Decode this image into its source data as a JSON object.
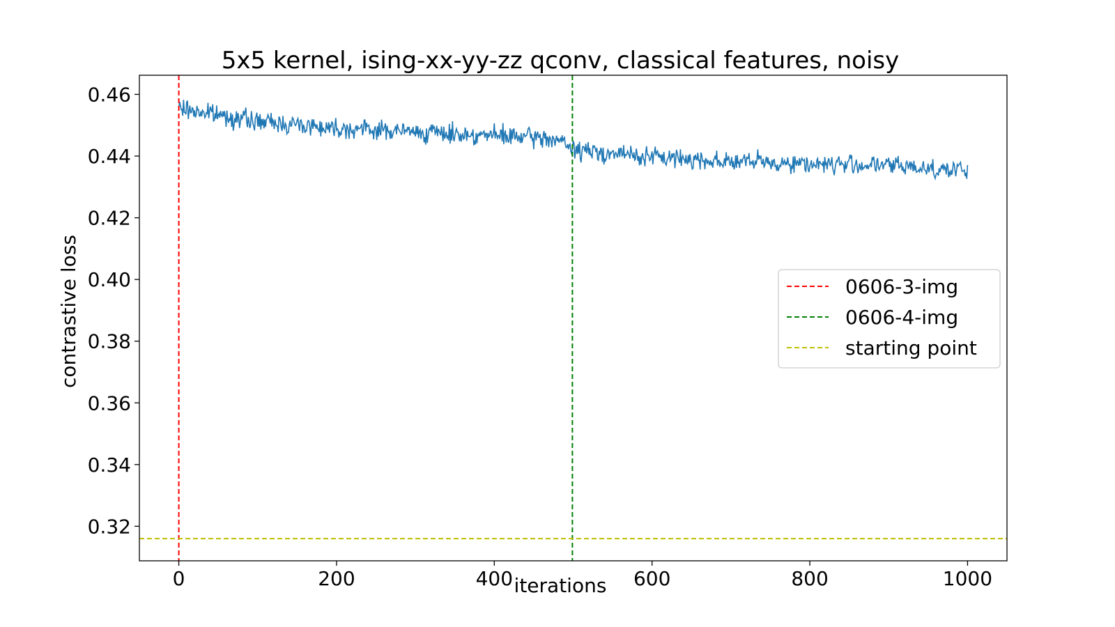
{
  "chart_data": {
    "type": "line",
    "title": "5x5 kernel, ising-xx-yy-zz qconv, classical features, noisy",
    "xlabel": "iterations",
    "ylabel": "contrastive loss",
    "xlim": [
      -50,
      1050
    ],
    "ylim": [
      0.3088,
      0.4662
    ],
    "x_ticks": [
      0,
      200,
      400,
      600,
      800,
      1000
    ],
    "x_tick_labels": [
      "0",
      "200",
      "400",
      "600",
      "800",
      "1000"
    ],
    "y_ticks": [
      0.32,
      0.34,
      0.36,
      0.38,
      0.4,
      0.42,
      0.44,
      0.46
    ],
    "y_tick_labels": [
      "0.32",
      "0.34",
      "0.36",
      "0.38",
      "0.40",
      "0.42",
      "0.44",
      "0.46"
    ],
    "grid": false,
    "legend_position": "center-right",
    "loss_series": {
      "color": "#1f77b4",
      "x_start": 0,
      "x_end": 1000,
      "step": 1,
      "noise_amplitude": 0.0022,
      "trend": [
        {
          "x": 0,
          "y": 0.4555
        },
        {
          "x": 100,
          "y": 0.4512
        },
        {
          "x": 200,
          "y": 0.4492
        },
        {
          "x": 300,
          "y": 0.4478
        },
        {
          "x": 400,
          "y": 0.4466
        },
        {
          "x": 480,
          "y": 0.4455
        },
        {
          "x": 500,
          "y": 0.442
        },
        {
          "x": 600,
          "y": 0.4397
        },
        {
          "x": 700,
          "y": 0.4383
        },
        {
          "x": 800,
          "y": 0.4375
        },
        {
          "x": 900,
          "y": 0.437
        },
        {
          "x": 1000,
          "y": 0.4352
        }
      ]
    },
    "reference_lines": [
      {
        "orientation": "vertical",
        "value": 0,
        "label": "0606-3-img",
        "color": "#ff0000"
      },
      {
        "orientation": "vertical",
        "value": 499,
        "label": "0606-4-img",
        "color": "#008000"
      },
      {
        "orientation": "horizontal",
        "value": 0.316,
        "label": "starting point",
        "color": "#bfbf00"
      }
    ]
  }
}
